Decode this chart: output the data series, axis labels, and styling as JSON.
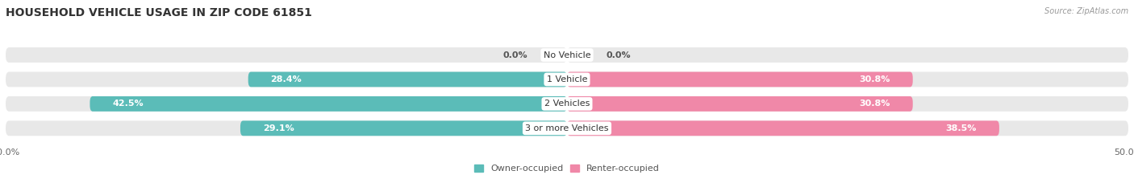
{
  "title": "HOUSEHOLD VEHICLE USAGE IN ZIP CODE 61851",
  "source": "Source: ZipAtlas.com",
  "categories": [
    "No Vehicle",
    "1 Vehicle",
    "2 Vehicles",
    "3 or more Vehicles"
  ],
  "owner_values": [
    0.0,
    28.4,
    42.5,
    29.1
  ],
  "renter_values": [
    0.0,
    30.8,
    30.8,
    38.5
  ],
  "owner_color": "#5bbcb8",
  "renter_color": "#f088a8",
  "bar_bg_color": "#e8e8e8",
  "axis_limit": 50.0,
  "owner_label": "Owner-occupied",
  "renter_label": "Renter-occupied",
  "title_fontsize": 10,
  "label_fontsize": 8,
  "tick_fontsize": 8,
  "bar_height": 0.62,
  "background_color": "#ffffff",
  "label_color_inside": "#ffffff",
  "label_color_outside": "#555555",
  "cat_label_fontsize": 8
}
